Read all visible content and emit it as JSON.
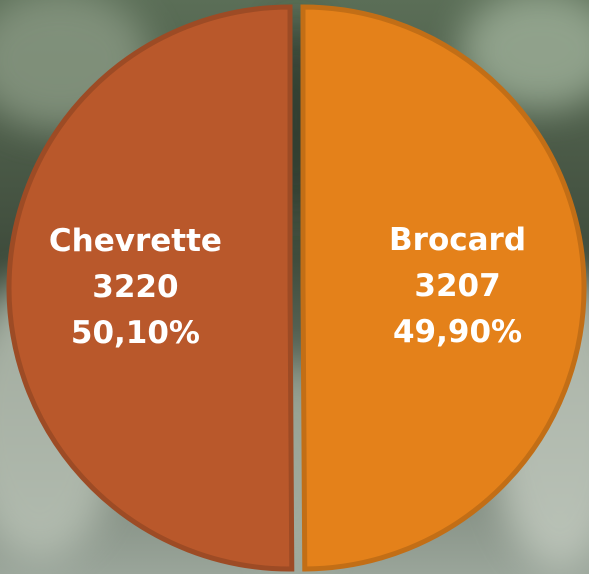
{
  "chart_data": {
    "type": "pie",
    "categories": [
      "Chevrette",
      "Brocard"
    ],
    "values": [
      3220,
      3207
    ],
    "percent_labels": [
      "50,10%",
      "49,90%"
    ],
    "colors": [
      "#b9582b",
      "#e4811a"
    ]
  }
}
